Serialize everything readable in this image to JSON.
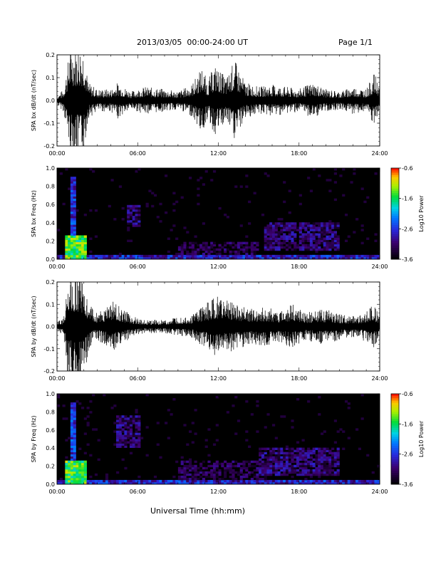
{
  "header": {
    "title": "2013/03/05  00:00-24:00 UT",
    "page": "Page 1/1"
  },
  "footer": {
    "xlabel": "Universal Time (hh:mm)"
  },
  "chart_data": [
    {
      "type": "line",
      "ylabel": "SPA bx dB/dt (nT/sec)",
      "xlabel": "",
      "x_ticks": [
        "00:00",
        "06:00",
        "12:00",
        "18:00",
        "24:00"
      ],
      "x_range_hours": [
        0,
        24
      ],
      "ylim": [
        -0.2,
        0.2
      ],
      "y_ticks": [
        "0.2",
        "0.1",
        "0.0",
        "-0.1",
        "-0.2"
      ],
      "y_tick_values": [
        0.2,
        0.1,
        0.0,
        -0.1,
        -0.2
      ],
      "series": [
        {
          "color": "#000000",
          "hours": [
            0,
            0.5,
            1.0,
            1.2,
            1.6,
            2.0,
            2.3,
            3.0,
            4.0,
            4.5,
            5.5,
            6.5,
            8.0,
            9.0,
            10.0,
            10.8,
            11.2,
            11.7,
            12.0,
            12.6,
            13.2,
            14.0,
            15.0,
            16.0,
            17.0,
            18.0,
            19.0,
            20.0,
            21.0,
            22.0,
            23.0,
            23.6,
            24.0
          ],
          "amplitude": [
            0.02,
            0.05,
            0.25,
            0.25,
            0.25,
            0.25,
            0.08,
            0.05,
            0.05,
            0.08,
            0.04,
            0.06,
            0.05,
            0.04,
            0.07,
            0.15,
            0.08,
            0.16,
            0.14,
            0.1,
            0.18,
            0.08,
            0.06,
            0.07,
            0.06,
            0.05,
            0.08,
            0.05,
            0.04,
            0.06,
            0.05,
            0.12,
            0.06
          ]
        }
      ]
    },
    {
      "type": "heatmap",
      "ylabel": "SPA bx Freq (Hz)",
      "x_ticks": [
        "00:00",
        "06:00",
        "12:00",
        "18:00",
        "24:00"
      ],
      "x_range_hours": [
        0,
        24
      ],
      "ylim": [
        0.0,
        1.0
      ],
      "y_ticks": [
        "1.0",
        "0.8",
        "0.6",
        "0.4",
        "0.2",
        "0.0"
      ],
      "y_tick_values": [
        1.0,
        0.8,
        0.6,
        0.4,
        0.2,
        0.0
      ],
      "colorbar": {
        "label": "Log10 Power",
        "ticks": [
          "-0.6",
          "-1.6",
          "-2.6",
          "-3.6"
        ],
        "range": [
          -3.6,
          -0.6
        ]
      },
      "features": [
        {
          "hours": [
            0.6,
            2.2
          ],
          "freq": [
            0.0,
            0.25
          ],
          "log_power": -1.0
        },
        {
          "hours": [
            0.9,
            1.3
          ],
          "freq": [
            0.0,
            0.9
          ],
          "log_power": -2.2
        },
        {
          "hours": [
            5.2,
            6.2
          ],
          "freq": [
            0.35,
            0.6
          ],
          "log_power": -2.7
        },
        {
          "hours": [
            9.0,
            15.0
          ],
          "freq": [
            0.05,
            0.2
          ],
          "log_power": -2.9
        },
        {
          "hours": [
            15.5,
            21.0
          ],
          "freq": [
            0.1,
            0.4
          ],
          "log_power": -2.7
        },
        {
          "hours": [
            0.0,
            24.0
          ],
          "freq": [
            0.0,
            0.04
          ],
          "log_power": -2.3
        }
      ]
    },
    {
      "type": "line",
      "ylabel": "SPA by dB/dt (nT/sec)",
      "xlabel": "",
      "x_ticks": [
        "00:00",
        "06:00",
        "12:00",
        "18:00",
        "24:00"
      ],
      "x_range_hours": [
        0,
        24
      ],
      "ylim": [
        -0.2,
        0.2
      ],
      "y_ticks": [
        "0.2",
        "0.1",
        "0.0",
        "-0.1",
        "-0.2"
      ],
      "y_tick_values": [
        0.2,
        0.1,
        0.0,
        -0.1,
        -0.2
      ],
      "series": [
        {
          "color": "#000000",
          "hours": [
            0,
            0.5,
            0.8,
            1.2,
            1.6,
            2.0,
            2.3,
            2.8,
            3.5,
            4.0,
            4.5,
            5.5,
            6.5,
            8.0,
            9.0,
            10.0,
            11.0,
            12.0,
            12.5,
            13.5,
            14.5,
            15.5,
            16.5,
            17.5,
            18.5,
            19.5,
            20.5,
            21.5,
            22.5,
            23.5,
            24.0
          ],
          "amplitude": [
            0.02,
            0.04,
            0.25,
            0.25,
            0.25,
            0.25,
            0.12,
            0.06,
            0.08,
            0.12,
            0.1,
            0.05,
            0.03,
            0.03,
            0.04,
            0.05,
            0.1,
            0.14,
            0.12,
            0.1,
            0.08,
            0.09,
            0.07,
            0.1,
            0.06,
            0.08,
            0.07,
            0.05,
            0.05,
            0.1,
            0.05
          ]
        }
      ]
    },
    {
      "type": "heatmap",
      "ylabel": "SPA by Freq (Hz)",
      "x_ticks": [
        "00:00",
        "06:00",
        "12:00",
        "18:00",
        "24:00"
      ],
      "x_range_hours": [
        0,
        24
      ],
      "ylim": [
        0.0,
        1.0
      ],
      "y_ticks": [
        "1.0",
        "0.8",
        "0.6",
        "0.4",
        "0.2",
        "0.0"
      ],
      "y_tick_values": [
        1.0,
        0.8,
        0.6,
        0.4,
        0.2,
        0.0
      ],
      "colorbar": {
        "label": "Log10 Power",
        "ticks": [
          "-0.6",
          "-1.6",
          "-2.6",
          "-3.6"
        ],
        "range": [
          -3.6,
          -0.6
        ]
      },
      "features": [
        {
          "hours": [
            0.6,
            2.2
          ],
          "freq": [
            0.0,
            0.25
          ],
          "log_power": -1.0
        },
        {
          "hours": [
            0.9,
            1.3
          ],
          "freq": [
            0.0,
            0.9
          ],
          "log_power": -2.2
        },
        {
          "hours": [
            4.5,
            6.2
          ],
          "freq": [
            0.4,
            0.75
          ],
          "log_power": -2.7
        },
        {
          "hours": [
            9.0,
            15.5
          ],
          "freq": [
            0.05,
            0.25
          ],
          "log_power": -2.9
        },
        {
          "hours": [
            15.0,
            21.0
          ],
          "freq": [
            0.1,
            0.4
          ],
          "log_power": -2.7
        },
        {
          "hours": [
            0.0,
            24.0
          ],
          "freq": [
            0.0,
            0.04
          ],
          "log_power": -2.3
        }
      ]
    }
  ]
}
